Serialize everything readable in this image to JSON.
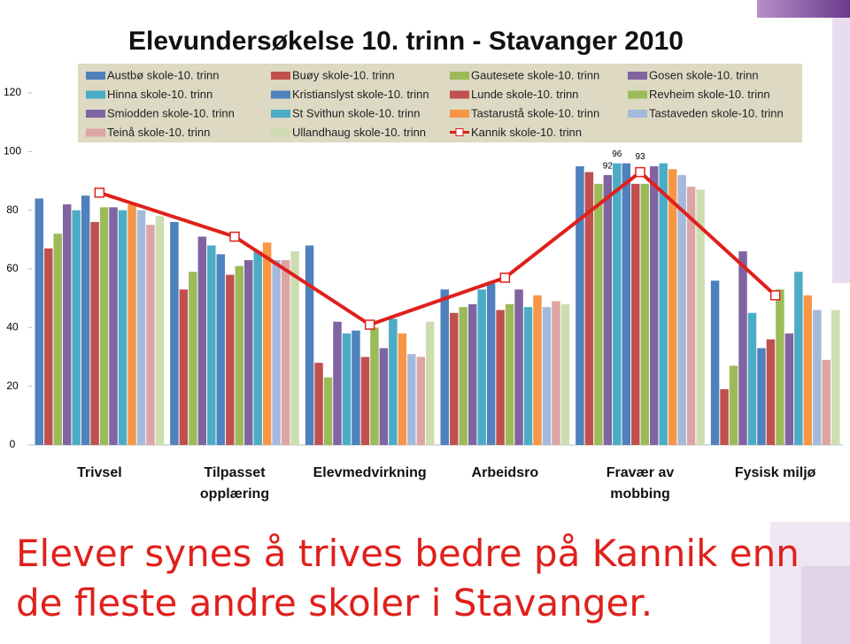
{
  "chart_data": {
    "type": "bar",
    "title": "Elevundersøkelse 10. trinn  - Stavanger 2010",
    "categories": [
      "Trivsel",
      "Tilpasset opplæring",
      "Elevmedvirkning",
      "Arbeidsro",
      "Fravær av mobbing",
      "Fysisk miljø"
    ],
    "ylim": [
      0,
      120
    ],
    "yticks": [
      0,
      20,
      40,
      60,
      80,
      100,
      120
    ],
    "series": [
      {
        "name": "Austbø skole-10. trinn",
        "color": "#4f81bd",
        "values": [
          84,
          76,
          68,
          53,
          95,
          56
        ]
      },
      {
        "name": "Buøy skole-10. trinn",
        "color": "#c0504d",
        "values": [
          67,
          53,
          28,
          45,
          93,
          19
        ]
      },
      {
        "name": "Gautesete skole-10. trinn",
        "color": "#9bbb59",
        "values": [
          72,
          59,
          23,
          47,
          89,
          27
        ]
      },
      {
        "name": "Gosen skole-10. trinn",
        "color": "#8064a2",
        "values": [
          82,
          71,
          42,
          48,
          92,
          66
        ],
        "labeled": [
          4
        ]
      },
      {
        "name": "Hinna skole-10. trinn",
        "color": "#4bacc6",
        "values": [
          80,
          68,
          38,
          53,
          96,
          45
        ],
        "labeled": [
          4
        ]
      },
      {
        "name": "Kristianslyst skole-10. trinn",
        "color": "#4f81bd",
        "values": [
          85,
          65,
          39,
          55,
          96,
          33
        ]
      },
      {
        "name": "Lunde skole-10. trinn",
        "color": "#c0504d",
        "values": [
          76,
          58,
          30,
          46,
          89,
          36
        ]
      },
      {
        "name": "Revheim skole-10. trinn",
        "color": "#9bbb59",
        "values": [
          81,
          61,
          40,
          48,
          89,
          53
        ]
      },
      {
        "name": "Smiodden skole-10. trinn",
        "color": "#8064a2",
        "values": [
          81,
          63,
          33,
          53,
          95,
          38
        ]
      },
      {
        "name": "St Svithun skole-10. trinn",
        "color": "#4bacc6",
        "values": [
          80,
          66,
          43,
          47,
          96,
          59
        ]
      },
      {
        "name": "Tastarustå skole-10. trinn",
        "color": "#f79646",
        "values": [
          82,
          69,
          38,
          51,
          94,
          51
        ]
      },
      {
        "name": "Tastaveden skole-10. trinn",
        "color": "#a5b9dc",
        "values": [
          80,
          63,
          31,
          47,
          92,
          46
        ]
      },
      {
        "name": "Teinå skole-10. trinn",
        "color": "#dca5a4",
        "values": [
          75,
          63,
          30,
          49,
          88,
          29
        ]
      },
      {
        "name": "Ullandhaug skole-10. trinn",
        "color": "#cdddb0",
        "values": [
          78,
          66,
          42,
          48,
          87,
          46
        ]
      },
      {
        "name": "Kannik skole-10. trinn",
        "color": "#e0201b",
        "type": "line",
        "values": [
          86,
          71,
          41,
          57,
          93,
          51
        ],
        "labeled": [
          4
        ]
      }
    ],
    "caption": "Elever synes å trives bedre på Kannik enn de fleste andre skoler i Stavanger."
  }
}
